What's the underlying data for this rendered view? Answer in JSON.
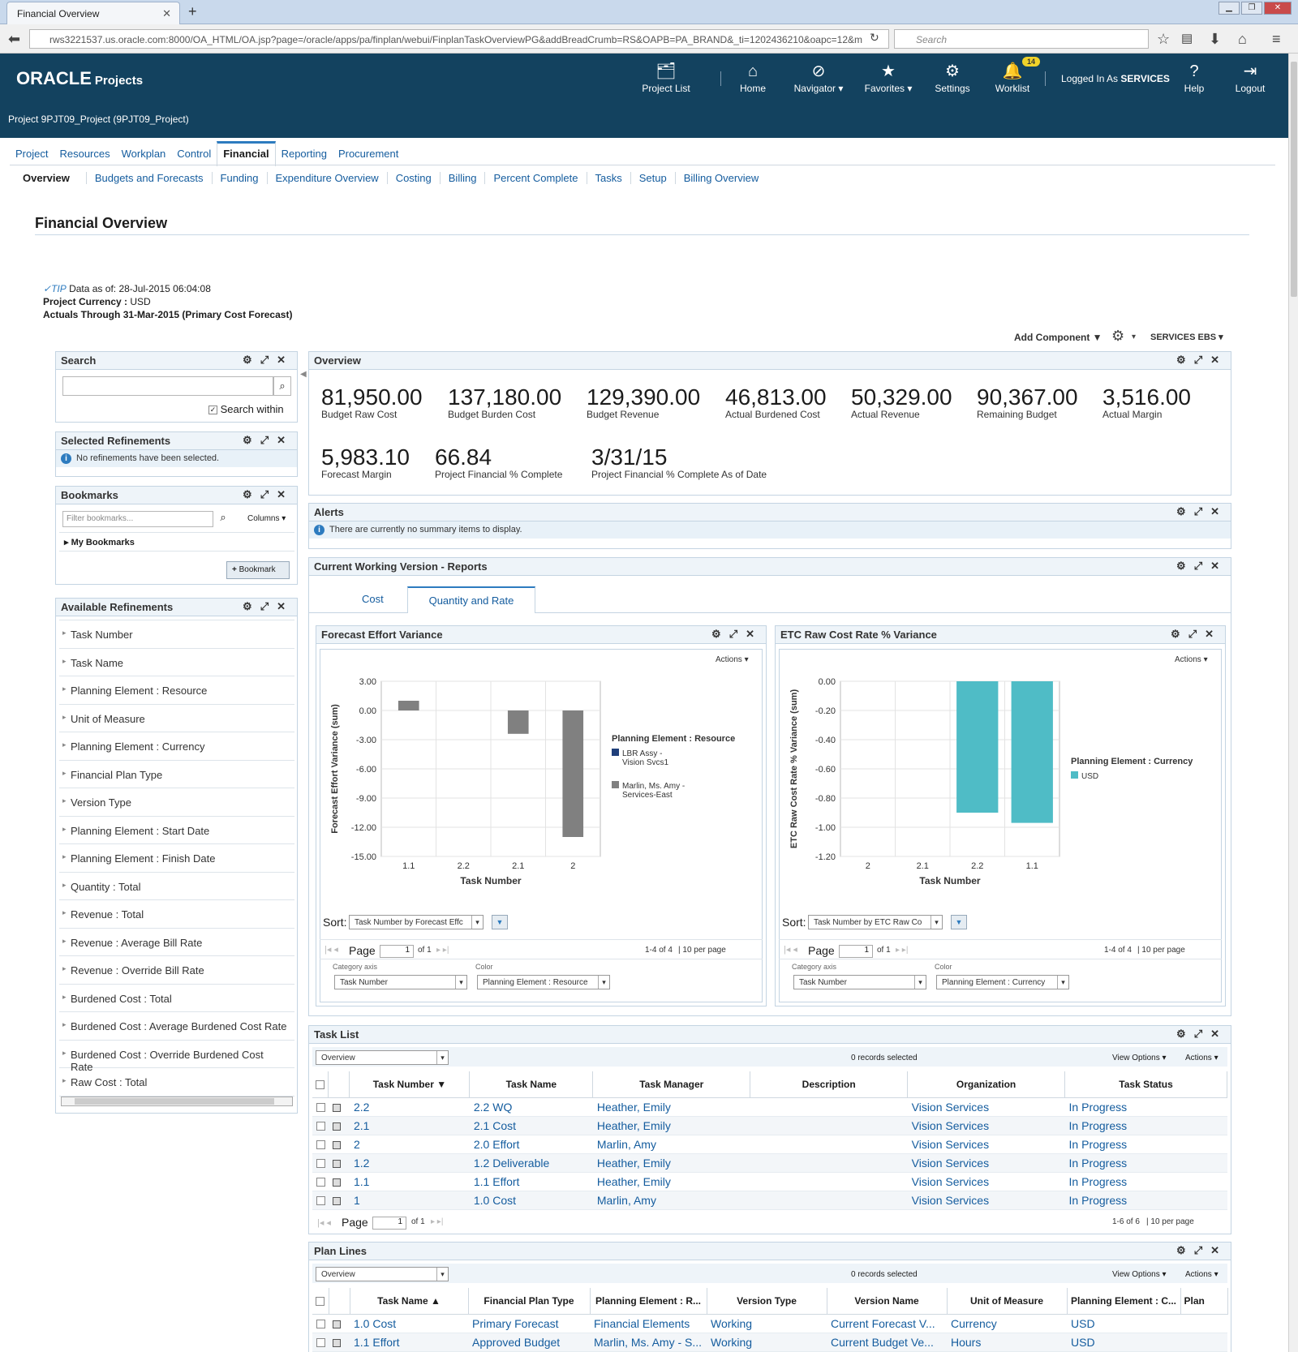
{
  "browser": {
    "tab_title": "Financial Overview",
    "url": "rws3221537.us.oracle.com:8000/OA_HTML/OA.jsp?page=/oracle/apps/pa/finplan/webui/FinplanTaskOverviewPG&addBreadCrumb=RS&OAPB=PA_BRAND&_ti=1202436210&oapc=12&m",
    "search_placeholder": "Search"
  },
  "header": {
    "brand": "ORACLE",
    "product": "Projects",
    "nav": {
      "project_list": "Project List",
      "home": "Home",
      "navigator": "Navigator",
      "favorites": "Favorites",
      "settings": "Settings",
      "worklist": "Worklist",
      "worklist_count": "14",
      "logged_in_label": "Logged In As",
      "logged_in_user": "SERVICES",
      "help": "Help",
      "logout": "Logout"
    },
    "project_line": "Project 9PJT09_Project (9PJT09_Project)"
  },
  "tabs": [
    "Project",
    "Resources",
    "Workplan",
    "Control",
    "Financial",
    "Reporting",
    "Procurement"
  ],
  "subtabs": [
    "Overview",
    "Budgets and Forecasts",
    "Funding",
    "Expenditure Overview",
    "Costing",
    "Billing",
    "Percent Complete",
    "Tasks",
    "Setup",
    "Billing Overview"
  ],
  "page": {
    "title": "Financial Overview",
    "tip_label": "TIP",
    "data_as_of": "Data as of: 28-Jul-2015 06:04:08",
    "currency_label": "Project Currency :",
    "currency_value": "USD",
    "actuals_label": "Actuals Through",
    "actuals_value": "31-Mar-2015 (Primary Cost Forecast)",
    "add_component": "Add Component",
    "services_ebs": "SERVICES EBS"
  },
  "search_panel": {
    "title": "Search",
    "search_within": "Search within"
  },
  "selected_refinements": {
    "title": "Selected Refinements",
    "message": "No refinements have been selected."
  },
  "bookmarks": {
    "title": "Bookmarks",
    "filter_placeholder": "Filter bookmarks...",
    "columns": "Columns",
    "my_bookmarks": "My Bookmarks",
    "bookmark_button": "Bookmark"
  },
  "available_refinements": {
    "title": "Available Refinements",
    "items": [
      "Task Number",
      "Task Name",
      "Planning Element : Resource",
      "Unit of Measure",
      "Planning Element : Currency",
      "Financial Plan Type",
      "Version Type",
      "Planning Element : Start Date",
      "Planning Element : Finish Date",
      "Quantity : Total",
      "Revenue : Total",
      "Revenue : Average Bill Rate",
      "Revenue : Override Bill Rate",
      "Burdened Cost : Total",
      "Burdened Cost : Average Burdened Cost Rate",
      "Burdened Cost : Override Burdened Cost Rate",
      "Raw Cost : Total"
    ]
  },
  "overview": {
    "title": "Overview",
    "kpis": [
      {
        "value": "81,950.00",
        "label": "Budget Raw Cost"
      },
      {
        "value": "137,180.00",
        "label": "Budget Burden Cost"
      },
      {
        "value": "129,390.00",
        "label": "Budget Revenue"
      },
      {
        "value": "46,813.00",
        "label": "Actual Burdened Cost"
      },
      {
        "value": "50,329.00",
        "label": "Actual Revenue"
      },
      {
        "value": "90,367.00",
        "label": "Remaining Budget"
      },
      {
        "value": "3,516.00",
        "label": "Actual Margin"
      },
      {
        "value": "5,983.10",
        "label": "Forecast Margin"
      },
      {
        "value": "66.84",
        "label": "Project Financial % Complete"
      },
      {
        "value": "3/31/15",
        "label": "Project Financial % Complete As of Date"
      }
    ]
  },
  "alerts": {
    "title": "Alerts",
    "message": "There are currently no summary items to display."
  },
  "reports": {
    "title": "Current Working Version - Reports",
    "tabs": [
      "Cost",
      "Quantity and Rate"
    ],
    "active_tab": "Quantity and Rate"
  },
  "chart_data": [
    {
      "type": "bar",
      "title": "Forecast Effort Variance",
      "xlabel": "Task Number",
      "ylabel": "Forecast Effort Variance (sum)",
      "categories": [
        "1.1",
        "2.2",
        "2.1",
        "2"
      ],
      "ylim": [
        -15,
        3
      ],
      "yticks": [
        "3.00",
        "0.00",
        "-3.00",
        "-6.00",
        "-9.00",
        "-12.00",
        "-15.00"
      ],
      "legend_title": "Planning Element : Resource",
      "series": [
        {
          "name": "LBR Assy - Vision Svcs1",
          "color": "#1f3f7a",
          "values": [
            0,
            0,
            0,
            0
          ]
        },
        {
          "name": "Marlin, Ms. Amy - Services-East",
          "color": "#808080",
          "values": [
            1,
            0,
            -2.4,
            -13
          ]
        }
      ],
      "actions": "Actions",
      "sort_label": "Sort:",
      "sort_value": "Task Number by Forecast Effc",
      "page_label": "Page",
      "page_value": "1",
      "page_of": "of 1",
      "range": "1-4 of 4",
      "per_page": "10 per page",
      "category_axis_label": "Category axis",
      "category_axis_value": "Task Number",
      "color_label": "Color",
      "color_value": "Planning Element : Resource"
    },
    {
      "type": "bar",
      "title": "ETC Raw Cost Rate % Variance",
      "xlabel": "Task Number",
      "ylabel": "ETC Raw Cost Rate % Variance (sum)",
      "categories": [
        "2",
        "2.1",
        "2.2",
        "1.1"
      ],
      "ylim": [
        -1.2,
        0
      ],
      "yticks": [
        "0.00",
        "-0.20",
        "-0.40",
        "-0.60",
        "-0.80",
        "-1.00",
        "-1.20"
      ],
      "legend_title": "Planning Element : Currency",
      "series": [
        {
          "name": "USD",
          "color": "#4fbcc6",
          "values": [
            0,
            0,
            -0.9,
            -0.97
          ]
        }
      ],
      "actions": "Actions",
      "sort_label": "Sort:",
      "sort_value": "Task Number by ETC Raw Co",
      "page_label": "Page",
      "page_value": "1",
      "page_of": "of 1",
      "range": "1-4 of 4",
      "per_page": "10 per page",
      "category_axis_label": "Category axis",
      "category_axis_value": "Task Number",
      "color_label": "Color",
      "color_value": "Planning Element : Currency"
    }
  ],
  "task_list": {
    "title": "Task List",
    "view": "Overview",
    "selected": "0 records selected",
    "view_options": "View Options",
    "actions": "Actions",
    "columns": [
      "Task Number",
      "Task Name",
      "Task Manager",
      "Description",
      "Organization",
      "Task Status"
    ],
    "rows": [
      [
        "2.2",
        "2.2 WQ",
        "Heather, Emily",
        "",
        "Vision Services",
        "In Progress"
      ],
      [
        "2.1",
        "2.1 Cost",
        "Heather, Emily",
        "",
        "Vision Services",
        "In Progress"
      ],
      [
        "2",
        "2.0 Effort",
        "Marlin, Amy",
        "",
        "Vision Services",
        "In Progress"
      ],
      [
        "1.2",
        "1.2 Deliverable",
        "Heather, Emily",
        "",
        "Vision Services",
        "In Progress"
      ],
      [
        "1.1",
        "1.1 Effort",
        "Heather, Emily",
        "",
        "Vision Services",
        "In Progress"
      ],
      [
        "1",
        "1.0 Cost",
        "Marlin, Amy",
        "",
        "Vision Services",
        "In Progress"
      ]
    ],
    "page_label": "Page",
    "page_value": "1",
    "page_of": "of 1",
    "range": "1-6 of 6",
    "per_page": "10 per page"
  },
  "plan_lines": {
    "title": "Plan Lines",
    "view": "Overview",
    "selected": "0 records selected",
    "view_options": "View Options",
    "actions": "Actions",
    "columns": [
      "Task Name",
      "Financial Plan Type",
      "Planning Element : R...",
      "Version Type",
      "Version Name",
      "Unit of Measure",
      "Planning Element : C...",
      "Plan"
    ],
    "rows": [
      [
        "1.0 Cost",
        "Primary Forecast",
        "Financial Elements",
        "Working",
        "Current Forecast V...",
        "Currency",
        "USD",
        ""
      ],
      [
        "1.1 Effort",
        "Approved Budget",
        "Marlin, Ms. Amy - S...",
        "Working",
        "Current Budget Ve...",
        "Hours",
        "USD",
        ""
      ]
    ]
  }
}
